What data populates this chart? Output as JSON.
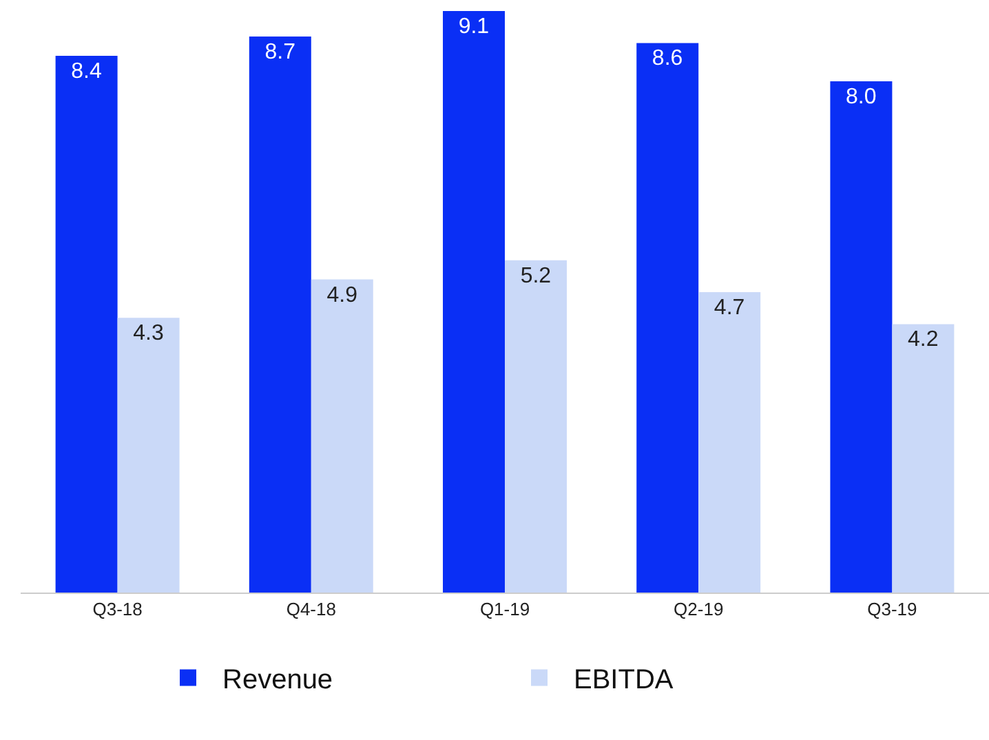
{
  "chart_data": {
    "type": "bar",
    "categories": [
      "Q3-18",
      "Q4-18",
      "Q1-19",
      "Q2-19",
      "Q3-19"
    ],
    "series": [
      {
        "name": "Revenue",
        "color": "#0a2ff5",
        "values": [
          8.4,
          8.7,
          9.1,
          8.6,
          8.0
        ],
        "value_labels": [
          "8.4",
          "8.7",
          "9.1",
          "8.6",
          "8.0"
        ]
      },
      {
        "name": "EBITDA",
        "color": "#cad9f8",
        "values": [
          4.3,
          4.9,
          5.2,
          4.7,
          4.2
        ],
        "value_labels": [
          "4.3",
          "4.9",
          "5.2",
          "4.7",
          "4.2"
        ]
      }
    ],
    "ylim": [
      0,
      9.1
    ],
    "grid": false,
    "legend": "bottom",
    "tick_labels": "x"
  }
}
